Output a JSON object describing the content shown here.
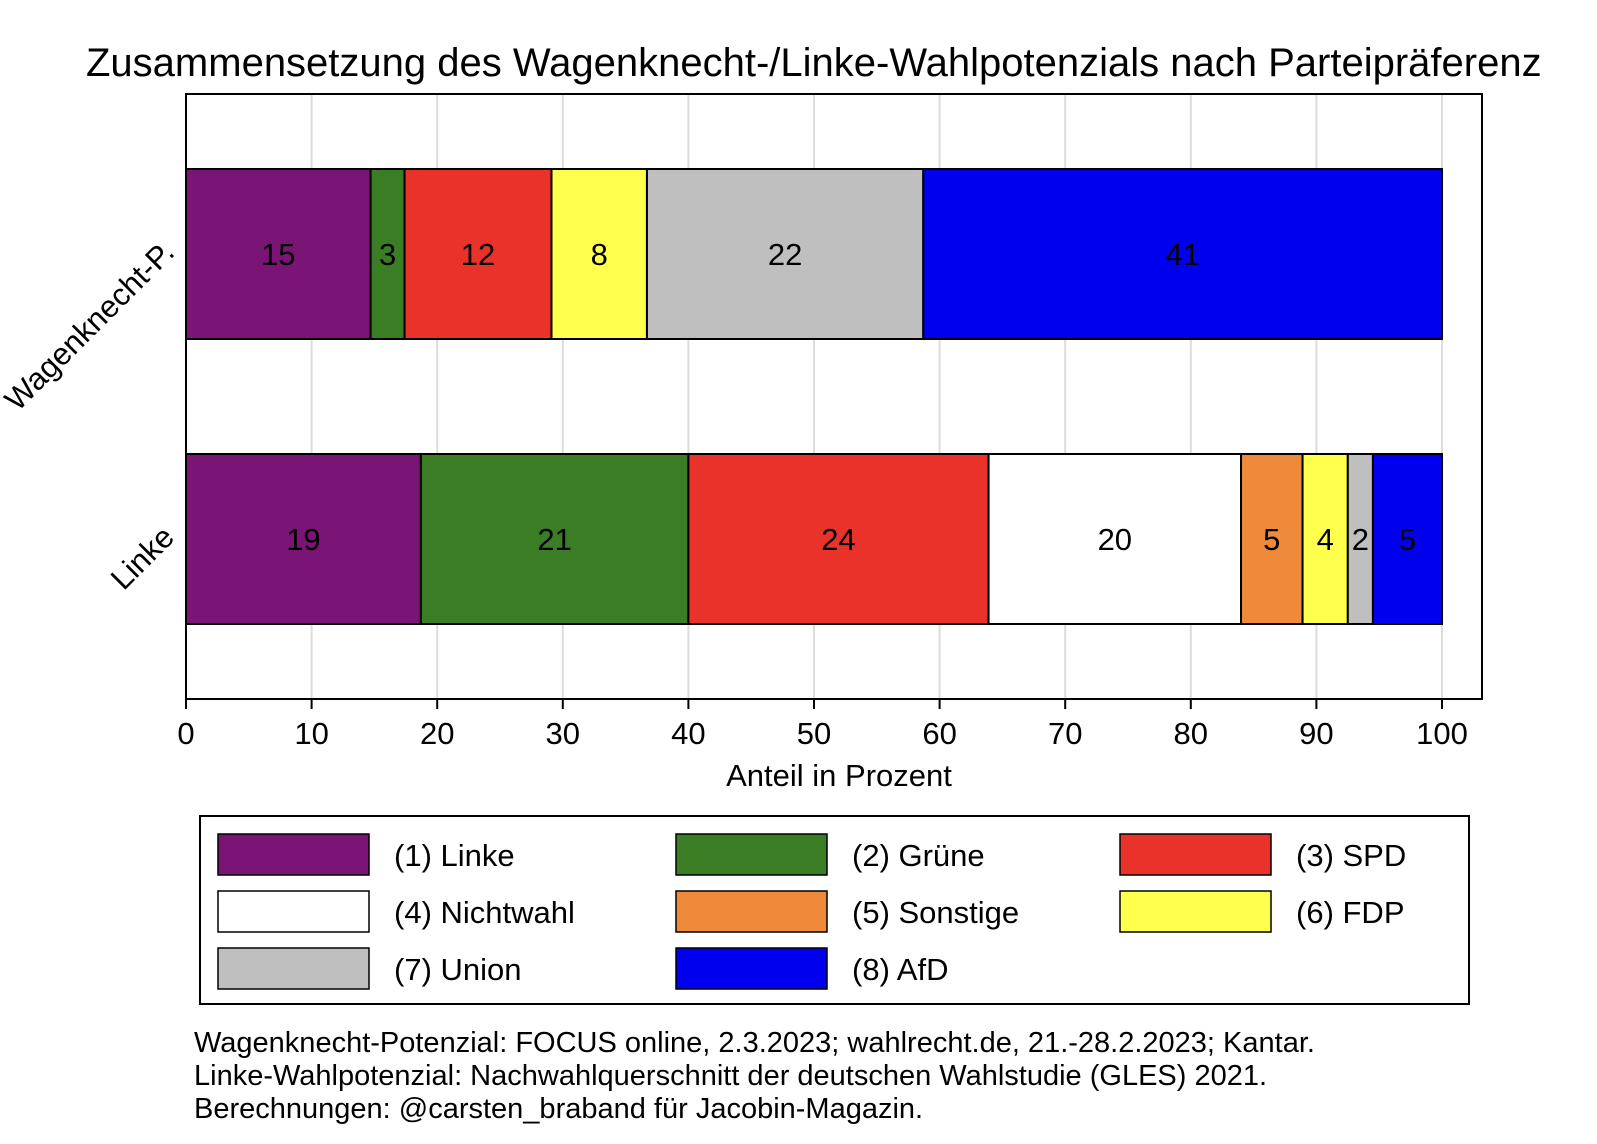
{
  "chart_data": {
    "type": "bar",
    "orientation": "horizontal",
    "stacked": true,
    "title": "Zusammensetzung des Wagenknecht-/Linke-Wahlpotenzials nach Parteipräferenz",
    "xlabel": "Anteil in Prozent",
    "ylabel": "",
    "xlim": [
      0,
      100
    ],
    "xticks": [
      0,
      10,
      20,
      30,
      40,
      50,
      60,
      70,
      80,
      90,
      100
    ],
    "grid": true,
    "legend_position": "bottom",
    "categories": [
      "Wagenknecht-P.",
      "Linke"
    ],
    "series": [
      {
        "name": "(1) Linke",
        "color": "#7a1475",
        "values": [
          14.7,
          18.7
        ],
        "labels": [
          "15",
          "19"
        ]
      },
      {
        "name": "(2) Grüne",
        "color": "#3a7d24",
        "values": [
          2.7,
          21.3
        ],
        "labels": [
          "3",
          "21"
        ]
      },
      {
        "name": "(3) SPD",
        "color": "#e8322a",
        "values": [
          11.7,
          23.9
        ],
        "labels": [
          "12",
          "24"
        ]
      },
      {
        "name": "(4) Nichtwahl",
        "color": "#ffffff",
        "values": [
          0,
          20.1
        ],
        "labels": [
          "",
          "20"
        ]
      },
      {
        "name": "(5) Sonstige",
        "color": "#ee8a3a",
        "values": [
          0,
          4.9
        ],
        "labels": [
          "",
          "5"
        ]
      },
      {
        "name": "(6) FDP",
        "color": "#ffff4d",
        "values": [
          7.6,
          3.6
        ],
        "labels": [
          "8",
          "4"
        ]
      },
      {
        "name": "(7) Union",
        "color": "#bfbfbf",
        "values": [
          22.0,
          2.0
        ],
        "labels": [
          "22",
          "2"
        ]
      },
      {
        "name": "(8) AfD",
        "color": "#0000ee",
        "values": [
          41.3,
          5.5
        ],
        "labels": [
          "41",
          "5"
        ]
      }
    ]
  },
  "footnote": [
    "Wagenknecht-Potenzial: FOCUS online, 2.3.2023; wahlrecht.de, 21.-28.2.2023; Kantar.",
    "Linke-Wahlpotenzial: Nachwahlquerschnitt der deutschen Wahlstudie (GLES) 2021.",
    "Berechnungen: @carsten_braband für Jacobin-Magazin."
  ]
}
